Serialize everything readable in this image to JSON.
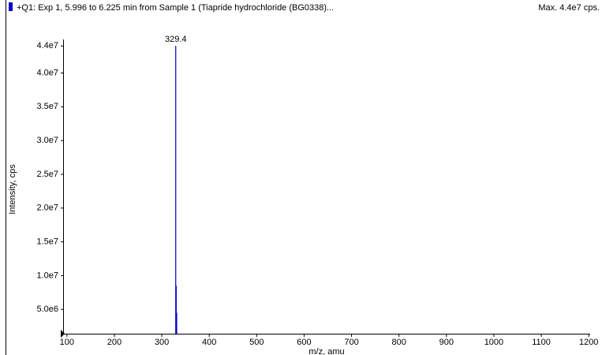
{
  "chart_data": {
    "type": "spectrum",
    "title": "+Q1: Exp 1, 5.996 to 6.225 min from Sample 1 (Tiapride hydrochloride (BG0338)...",
    "max_label": "Max. 4.4e7 cps.",
    "x_label": "m/z, amu",
    "y_label": "Intensity, cps",
    "color": "#0000cc",
    "x": [
      329.4,
      330.4,
      331.4
    ],
    "values": [
      44000000,
      8500000,
      4500000
    ],
    "xlim": [
      92,
      1203
    ],
    "ylim": [
      1400000,
      44500000
    ],
    "xticks": [
      100,
      200,
      300,
      400,
      500,
      600,
      700,
      800,
      900,
      1000,
      1100,
      1200
    ],
    "yticks": [
      {
        "value": 5000000,
        "label": "5.0e6"
      },
      {
        "value": 10000000,
        "label": "1.0e7"
      },
      {
        "value": 15000000,
        "label": "1.5e7"
      },
      {
        "value": 20000000,
        "label": "2.0e7"
      },
      {
        "value": 25000000,
        "label": "2.5e7"
      },
      {
        "value": 30000000,
        "label": "3.0e7"
      },
      {
        "value": 35000000,
        "label": "3.5e7"
      },
      {
        "value": 40000000,
        "label": "4.0e7"
      },
      {
        "value": 44000000,
        "label": "4.4e7"
      }
    ]
  }
}
